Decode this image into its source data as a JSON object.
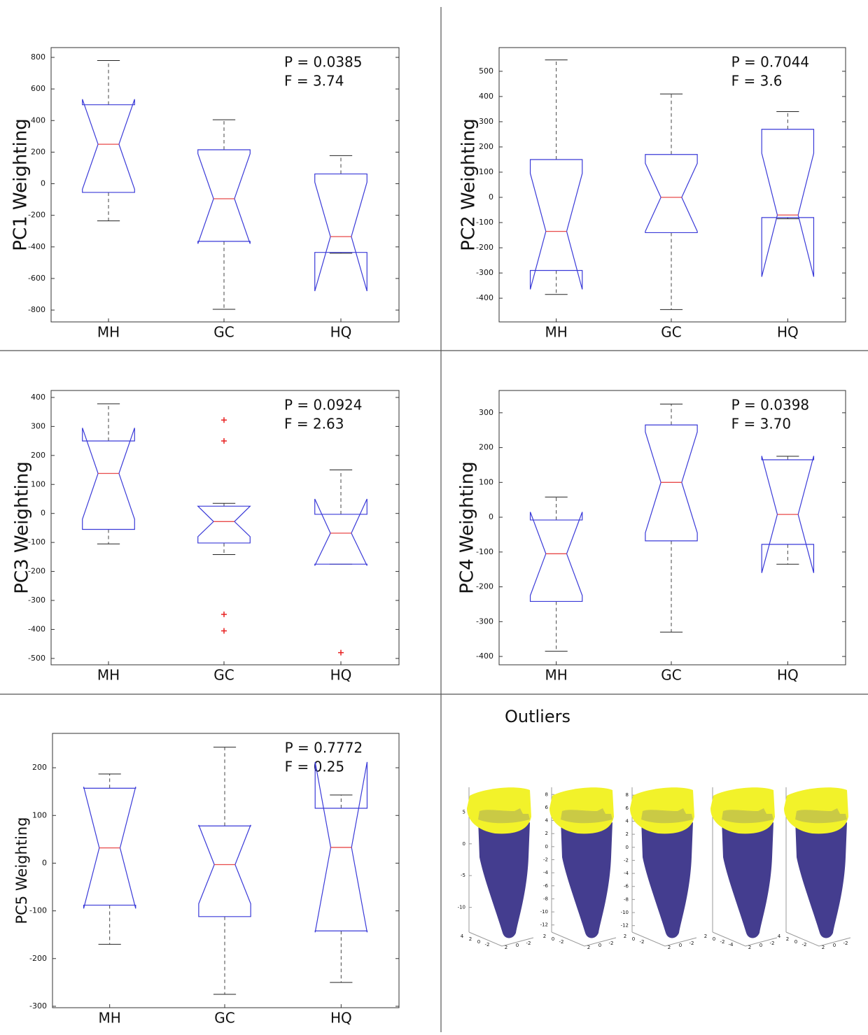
{
  "chart_data": [
    {
      "type": "box",
      "ylabel": "PC1 Weighting",
      "annotations": [
        "P = 0.0385",
        "F = 3.74"
      ],
      "categories": [
        "MH",
        "GC",
        "HQ"
      ],
      "ylim": [
        -875,
        862
      ],
      "yticks": [
        -800,
        -600,
        -400,
        -200,
        0,
        200,
        400,
        600,
        800
      ],
      "color": "#3a3ad8",
      "median_color": "#e84a4a",
      "boxes": [
        {
          "whisker_low": -235,
          "q1": -55,
          "median": 250,
          "q3": 500,
          "whisker_high": 780,
          "notch_low": -35,
          "notch_high": 535,
          "outliers": []
        },
        {
          "whisker_low": -795,
          "q1": -365,
          "median": -95,
          "q3": 215,
          "whisker_high": 405,
          "notch_low": -380,
          "notch_high": 190,
          "outliers": []
        },
        {
          "whisker_low": -440,
          "q1": -435,
          "median": -335,
          "q3": 62,
          "whisker_high": 178,
          "notch_low": -680,
          "notch_high": 10,
          "outliers": []
        }
      ]
    },
    {
      "type": "box",
      "ylabel": "PC2 Weighting",
      "annotations": [
        "P = 0.7044",
        "F = 3.6"
      ],
      "categories": [
        "MH",
        "GC",
        "HQ"
      ],
      "ylim": [
        -494,
        594
      ],
      "yticks": [
        -400,
        -300,
        -200,
        -100,
        0,
        100,
        200,
        300,
        400,
        500
      ],
      "color": "#3a3ad8",
      "median_color": "#e84a4a",
      "boxes": [
        {
          "whisker_low": -385,
          "q1": -290,
          "median": -135,
          "q3": 150,
          "whisker_high": 545,
          "notch_low": -365,
          "notch_high": 95,
          "outliers": []
        },
        {
          "whisker_low": -445,
          "q1": -140,
          "median": 0,
          "q3": 170,
          "whisker_high": 410,
          "notch_low": -135,
          "notch_high": 135,
          "outliers": []
        },
        {
          "whisker_low": -85,
          "q1": -80,
          "median": -70,
          "q3": 270,
          "whisker_high": 340,
          "notch_low": -315,
          "notch_high": 175,
          "outliers": []
        }
      ]
    },
    {
      "type": "box",
      "ylabel": "PC3 Weighting",
      "annotations": [
        "P = 0.0924",
        "F = 2.63"
      ],
      "categories": [
        "MH",
        "GC",
        "HQ"
      ],
      "ylim": [
        -522,
        424
      ],
      "yticks": [
        -500,
        -400,
        -300,
        -200,
        -100,
        0,
        100,
        200,
        300,
        400
      ],
      "color": "#3a3ad8",
      "median_color": "#e84a4a",
      "boxes": [
        {
          "whisker_low": -105,
          "q1": -55,
          "median": 138,
          "q3": 250,
          "whisker_high": 378,
          "notch_low": -20,
          "notch_high": 295,
          "outliers": []
        },
        {
          "whisker_low": -142,
          "q1": -102,
          "median": -28,
          "q3": 25,
          "whisker_high": 35,
          "notch_low": -80,
          "notch_high": 25,
          "outliers": [
            322,
            250,
            -348,
            -405
          ]
        },
        {
          "whisker_low": -175,
          "q1": -175,
          "median": -68,
          "q3": -3,
          "whisker_high": 150,
          "notch_low": -180,
          "notch_high": 50,
          "outliers": [
            -480
          ]
        }
      ]
    },
    {
      "type": "box",
      "ylabel": "PC4 Weighting",
      "annotations": [
        "P = 0.0398",
        "F = 3.70"
      ],
      "categories": [
        "MH",
        "GC",
        "HQ"
      ],
      "ylim": [
        -424,
        364
      ],
      "yticks": [
        -400,
        -300,
        -200,
        -100,
        0,
        100,
        200,
        300
      ],
      "color": "#3a3ad8",
      "median_color": "#e84a4a",
      "boxes": [
        {
          "whisker_low": -385,
          "q1": -242,
          "median": -105,
          "q3": -8,
          "whisker_high": 58,
          "notch_low": -225,
          "notch_high": 15,
          "outliers": []
        },
        {
          "whisker_low": -330,
          "q1": -68,
          "median": 100,
          "q3": 265,
          "whisker_high": 325,
          "notch_low": -45,
          "notch_high": 245,
          "outliers": []
        },
        {
          "whisker_low": -135,
          "q1": -78,
          "median": 8,
          "q3": 165,
          "whisker_high": 175,
          "notch_low": -160,
          "notch_high": 176,
          "outliers": []
        }
      ]
    },
    {
      "type": "box",
      "ylabel": "PC5 Weighting",
      "annotations": [
        "P = 0.7772",
        "F = 0.25"
      ],
      "categories": [
        "MH",
        "GC",
        "HQ"
      ],
      "ylim": [
        -303,
        272
      ],
      "yticks": [
        -300,
        -200,
        -100,
        0,
        100,
        200
      ],
      "color": "#3a3ad8",
      "median_color": "#e84a4a",
      "boxes": [
        {
          "whisker_low": -170,
          "q1": -88,
          "median": 32,
          "q3": 157,
          "whisker_high": 187,
          "notch_low": -95,
          "notch_high": 160,
          "outliers": []
        },
        {
          "whisker_low": -275,
          "q1": -112,
          "median": -3,
          "q3": 78,
          "whisker_high": 243,
          "notch_low": -85,
          "notch_high": 80,
          "outliers": []
        },
        {
          "whisker_low": -250,
          "q1": -142,
          "median": 33,
          "q3": 115,
          "whisker_high": 143,
          "notch_low": -145,
          "notch_high": 212,
          "outliers": []
        }
      ]
    }
  ],
  "outliers_panel": {
    "title": "Outliers",
    "views": [
      {
        "zlim": [
          -13.9,
          8.9
        ],
        "zticks": [
          5,
          0,
          -5,
          -10
        ],
        "xticks": [
          4,
          2,
          0,
          -2
        ],
        "yticks": [
          2,
          0,
          -2
        ]
      },
      {
        "zlim": [
          -13.1,
          9.1
        ],
        "zticks": [
          8,
          6,
          4,
          2,
          0,
          -2,
          -4,
          -6,
          -8,
          -10,
          -12
        ],
        "xticks": [
          2,
          0,
          -2
        ],
        "yticks": [
          2,
          0,
          -2
        ]
      },
      {
        "zlim": [
          -13,
          9.2
        ],
        "zticks": [
          8,
          6,
          4,
          2,
          0,
          -2,
          -4,
          -6,
          -8,
          -10,
          -12
        ],
        "xticks": [
          2,
          0,
          -2
        ],
        "yticks": [
          2,
          0,
          -2
        ]
      },
      {
        "zlim": [
          -13,
          9
        ],
        "zticks": [],
        "xticks": [
          2,
          0,
          -2,
          -4
        ],
        "yticks": [
          2,
          0,
          -2
        ]
      },
      {
        "zlim": [
          -13,
          9
        ],
        "zticks": [],
        "xticks": [
          4,
          2,
          0,
          -2
        ],
        "yticks": [
          2,
          0,
          -2
        ]
      }
    ]
  }
}
